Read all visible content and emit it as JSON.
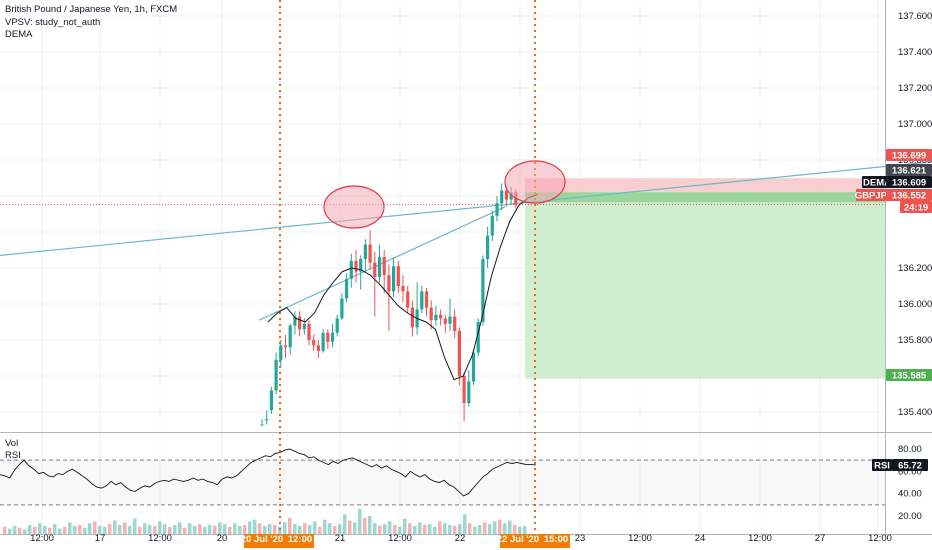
{
  "legend": {
    "title": "British Pound / Japanese Yen, 1h, FXCM",
    "vpsv": "VPSV: study_not_auth",
    "dema": "DEMA"
  },
  "pane2": {
    "vol_label": "Vol",
    "rsi_label": "RSI",
    "rsi_value": "65.72",
    "rsi_name": "RSI",
    "levels": [
      "80.00",
      "60.00",
      "40.00",
      "20.00"
    ],
    "rsi_series": [
      57,
      56,
      54,
      61,
      66,
      70,
      65,
      62,
      58,
      59,
      56,
      55,
      58,
      57,
      60,
      62,
      59,
      56,
      53,
      49,
      46,
      45,
      47,
      51,
      48,
      50,
      46,
      43,
      42,
      45,
      47,
      46,
      49,
      51,
      52,
      51,
      53,
      52,
      51,
      52,
      54,
      52,
      53,
      51,
      50,
      48,
      53,
      55,
      54,
      56,
      60,
      64,
      68,
      70,
      72,
      74,
      73,
      76,
      77,
      79,
      80,
      78,
      76,
      75,
      72,
      73,
      70,
      68,
      66,
      69,
      67,
      70,
      71,
      72,
      70,
      68,
      66,
      64,
      66,
      63,
      65,
      62,
      60,
      58,
      55,
      60,
      57,
      55,
      57,
      53,
      51,
      50,
      52,
      48,
      46,
      42,
      38,
      40,
      45,
      50,
      55,
      58,
      62,
      64,
      66,
      68,
      67,
      68,
      67,
      66,
      66,
      65.72
    ]
  },
  "price_axis": {
    "labels": [
      "137.600",
      "137.400",
      "137.200",
      "137.000",
      "136.800",
      "136.200",
      "136.000",
      "135.800",
      "135.400"
    ]
  },
  "time_axis": {
    "labels": [
      "12:00",
      "17",
      "12:00",
      "20",
      "21",
      "12:00",
      "22",
      "23",
      "12:00",
      "24",
      "12:00",
      "27",
      "12:00"
    ],
    "marker_left": "20 Jul '20",
    "marker_left_time": "12:00",
    "marker_right": "22 Jul '20",
    "marker_right_time": "15:00"
  },
  "price_tags": {
    "stop": "136.699",
    "current": "136.621",
    "dema_name": "DEMA",
    "dema_value": "136.609",
    "symbol": "GBPJPY",
    "symbol_price": "136.552",
    "countdown": "24:19",
    "target": "135.585"
  },
  "colors": {
    "up": "#26a69a",
    "down": "#ef5350",
    "trendline": "#6fb8c8",
    "dema_line": "#131722",
    "marker_line": "#ef6c00",
    "tag_orange": "#f57c00",
    "stop_zone": "#f7c5c8",
    "target_zone": "#c8ebc8",
    "ellipse_fill": "#f6a9b7",
    "ellipse_stroke": "#e53950"
  },
  "chart_data": {
    "type": "candlestick",
    "title": "British Pound / Japanese Yen, 1h, FXCM",
    "symbol": "GBPJPY",
    "y_range": [
      135.33,
      137.68
    ],
    "candles": [
      [
        135.33,
        135.33,
        135.33,
        135.36
      ],
      [
        135.36,
        135.36,
        135.33,
        135.41
      ],
      [
        135.41,
        135.52,
        135.39,
        135.54
      ],
      [
        135.52,
        135.69,
        135.5,
        135.73
      ],
      [
        135.69,
        135.77,
        135.65,
        135.8
      ],
      [
        135.77,
        135.76,
        135.7,
        135.83
      ],
      [
        135.76,
        135.88,
        135.72,
        135.89
      ],
      [
        135.88,
        135.93,
        135.83,
        135.96
      ],
      [
        135.93,
        135.86,
        135.82,
        135.96
      ],
      [
        135.86,
        135.89,
        135.83,
        135.92
      ],
      [
        135.89,
        135.8,
        135.77,
        135.91
      ],
      [
        135.8,
        135.77,
        135.74,
        135.83
      ],
      [
        135.77,
        135.74,
        135.7,
        135.8
      ],
      [
        135.74,
        135.84,
        135.73,
        135.86
      ],
      [
        135.84,
        135.79,
        135.75,
        135.86
      ],
      [
        135.79,
        135.84,
        135.76,
        135.89
      ],
      [
        135.84,
        135.92,
        135.82,
        135.94
      ],
      [
        135.92,
        136.03,
        135.91,
        136.06
      ],
      [
        136.03,
        136.14,
        136.01,
        136.17
      ],
      [
        136.14,
        136.24,
        136.09,
        136.28
      ],
      [
        136.24,
        136.18,
        136.12,
        136.3
      ],
      [
        136.18,
        136.25,
        136.08,
        136.27
      ],
      [
        136.25,
        136.33,
        136.18,
        136.36
      ],
      [
        136.33,
        136.23,
        136.19,
        136.41
      ],
      [
        136.23,
        136.15,
        135.93,
        136.29
      ],
      [
        136.15,
        136.26,
        136.12,
        136.33
      ],
      [
        136.26,
        136.16,
        136.06,
        136.3
      ],
      [
        136.16,
        136.07,
        135.85,
        136.22
      ],
      [
        136.07,
        136.21,
        136.04,
        136.26
      ],
      [
        136.21,
        136.1,
        136.06,
        136.24
      ],
      [
        136.1,
        136.07,
        136.01,
        136.16
      ],
      [
        136.07,
        135.98,
        135.95,
        136.1
      ],
      [
        135.98,
        135.87,
        135.82,
        136.02
      ],
      [
        135.87,
        135.97,
        135.83,
        136.12
      ],
      [
        135.97,
        136.07,
        135.95,
        136.1
      ],
      [
        136.07,
        135.98,
        135.93,
        136.09
      ],
      [
        135.98,
        135.91,
        135.86,
        136.02
      ],
      [
        135.91,
        135.94,
        135.88,
        135.99
      ],
      [
        135.94,
        135.92,
        135.88,
        135.97
      ],
      [
        135.92,
        135.89,
        135.84,
        135.94
      ],
      [
        135.89,
        135.93,
        135.85,
        136.03
      ],
      [
        135.93,
        135.85,
        135.81,
        135.97
      ],
      [
        135.85,
        135.6,
        135.55,
        135.87
      ],
      [
        135.6,
        135.45,
        135.35,
        135.62
      ],
      [
        135.45,
        135.57,
        135.43,
        135.63
      ],
      [
        135.57,
        135.73,
        135.55,
        135.75
      ],
      [
        135.73,
        135.9,
        135.71,
        135.92
      ],
      [
        135.9,
        136.25,
        135.88,
        136.27
      ],
      [
        136.25,
        136.38,
        136.2,
        136.43
      ],
      [
        136.38,
        136.49,
        136.35,
        136.52
      ],
      [
        136.49,
        136.56,
        136.46,
        136.6
      ],
      [
        136.56,
        136.63,
        136.52,
        136.67
      ],
      [
        136.63,
        136.58,
        136.54,
        136.66
      ],
      [
        136.58,
        136.62,
        136.55,
        136.65
      ],
      [
        136.62,
        136.55,
        136.53,
        136.64
      ]
    ],
    "volume": [
      8,
      6,
      9,
      7,
      5,
      10,
      8,
      12,
      9,
      7,
      11,
      6,
      8,
      13,
      9,
      10,
      7,
      12,
      14,
      9,
      8,
      11,
      15,
      10,
      13,
      9,
      17,
      8,
      12,
      10,
      9,
      14,
      11,
      8,
      10,
      13,
      7,
      12,
      9,
      11,
      8,
      10,
      9,
      13,
      11,
      8,
      12,
      9,
      10,
      14,
      16,
      12,
      9,
      11,
      10,
      8,
      13,
      18,
      11,
      9,
      12,
      10,
      14,
      8,
      16,
      12,
      9,
      11,
      22,
      15,
      13,
      28,
      18,
      20,
      12,
      9,
      11,
      14,
      10,
      8,
      17,
      12,
      9,
      13,
      10,
      11,
      8,
      14,
      12,
      10,
      9,
      11,
      22,
      12,
      8,
      10,
      13,
      11,
      14,
      16,
      12,
      15,
      10,
      8,
      9
    ],
    "dema": [
      135.9,
      135.95,
      135.98,
      135.92,
      135.9,
      135.95,
      136.05,
      136.12,
      136.18,
      136.2,
      136.19,
      136.16,
      136.11,
      136.05,
      135.99,
      135.95,
      135.92,
      135.9,
      135.86,
      135.7,
      135.58,
      135.6,
      135.72,
      135.92,
      136.15,
      136.32,
      136.46,
      136.55,
      136.59,
      136.61
    ],
    "trendlines": [
      {
        "from": [
          0,
          136.27
        ],
        "to": [
          932,
          136.79
        ]
      },
      {
        "from": [
          259,
          135.91
        ],
        "to": [
          505,
          136.54
        ]
      }
    ],
    "position": {
      "type": "short",
      "entry": 136.621,
      "stop": 136.699,
      "target": 135.585
    }
  }
}
